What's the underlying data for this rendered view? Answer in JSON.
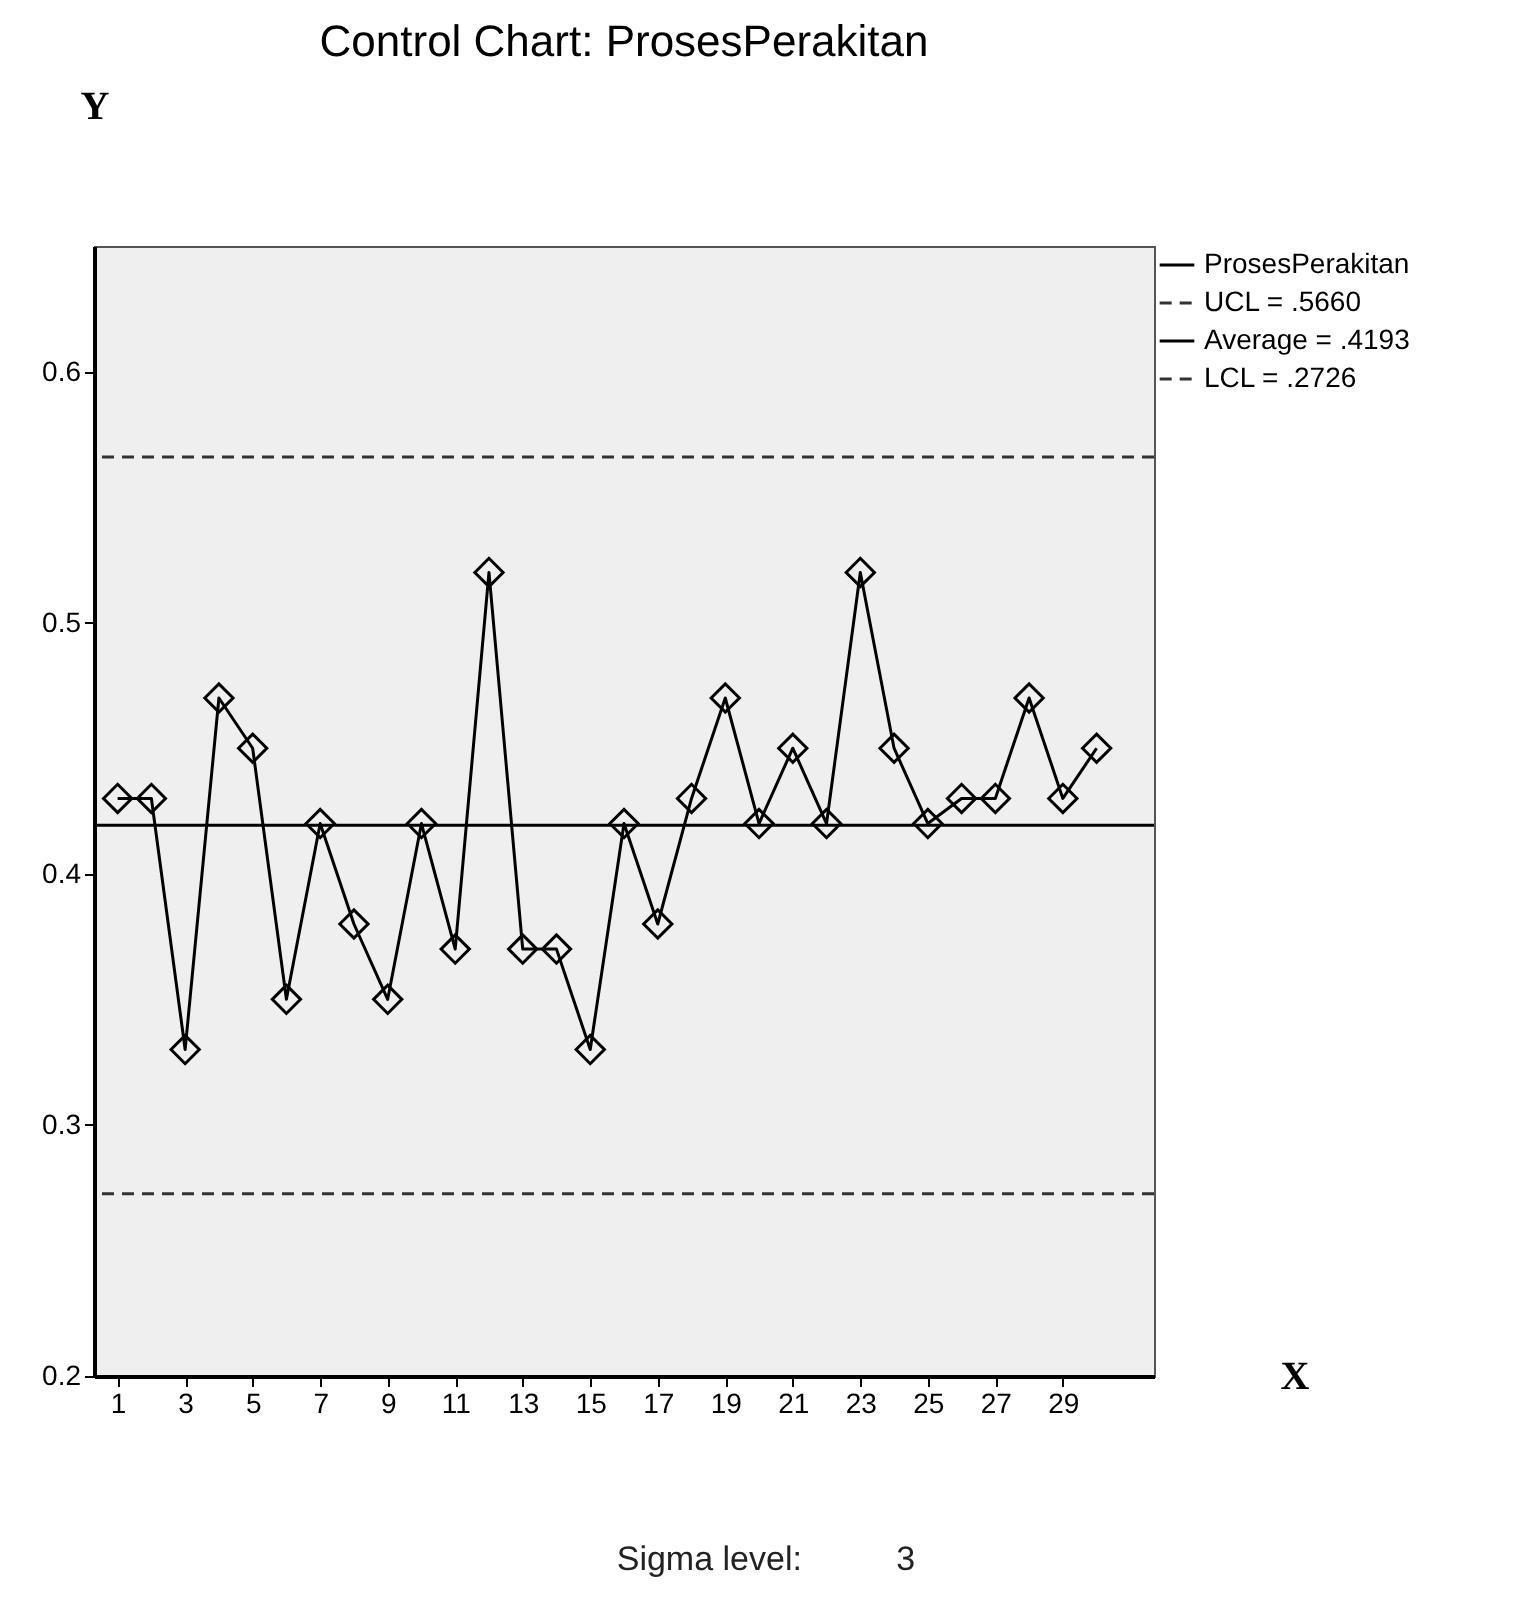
{
  "chart_data": {
    "type": "line",
    "title": "Control Chart: ProsesPerakitan",
    "xlabel": "X",
    "ylabel": "Y",
    "x": [
      1,
      2,
      3,
      4,
      5,
      6,
      7,
      8,
      9,
      10,
      11,
      12,
      13,
      14,
      15,
      16,
      17,
      18,
      19,
      20,
      21,
      22,
      23,
      24,
      25,
      26,
      27,
      28,
      29,
      30
    ],
    "series": [
      {
        "name": "ProsesPerakitan",
        "color": "#000000",
        "values": [
          0.43,
          0.43,
          0.33,
          0.47,
          0.45,
          0.35,
          0.42,
          0.38,
          0.35,
          0.42,
          0.37,
          0.52,
          0.37,
          0.37,
          0.33,
          0.42,
          0.38,
          0.43,
          0.47,
          0.42,
          0.45,
          0.42,
          0.52,
          0.45,
          0.42,
          0.43,
          0.43,
          0.47,
          0.43,
          0.45
        ]
      }
    ],
    "xlim": [
      0.3,
      31.7
    ],
    "xticks": [
      1,
      3,
      5,
      7,
      9,
      11,
      13,
      15,
      17,
      19,
      21,
      23,
      25,
      27,
      29
    ],
    "ylim": [
      0.2,
      0.65
    ],
    "yticks": [
      0.2,
      0.3,
      0.4,
      0.5,
      0.6
    ],
    "ref_lines": [
      {
        "axis": "y",
        "value": 0.566,
        "label": "UCL = .5660",
        "color": "#333333",
        "line_style": "dashed"
      },
      {
        "axis": "y",
        "value": 0.4193,
        "label": "Average = .4193",
        "color": "#000000",
        "line_style": "solid"
      },
      {
        "axis": "y",
        "value": 0.2726,
        "label": "LCL = .2726",
        "color": "#333333",
        "line_style": "dashed"
      }
    ],
    "marker": "diamond",
    "legend": "top right",
    "grid": false,
    "annotations": [
      "Sigma level:          3"
    ]
  }
}
